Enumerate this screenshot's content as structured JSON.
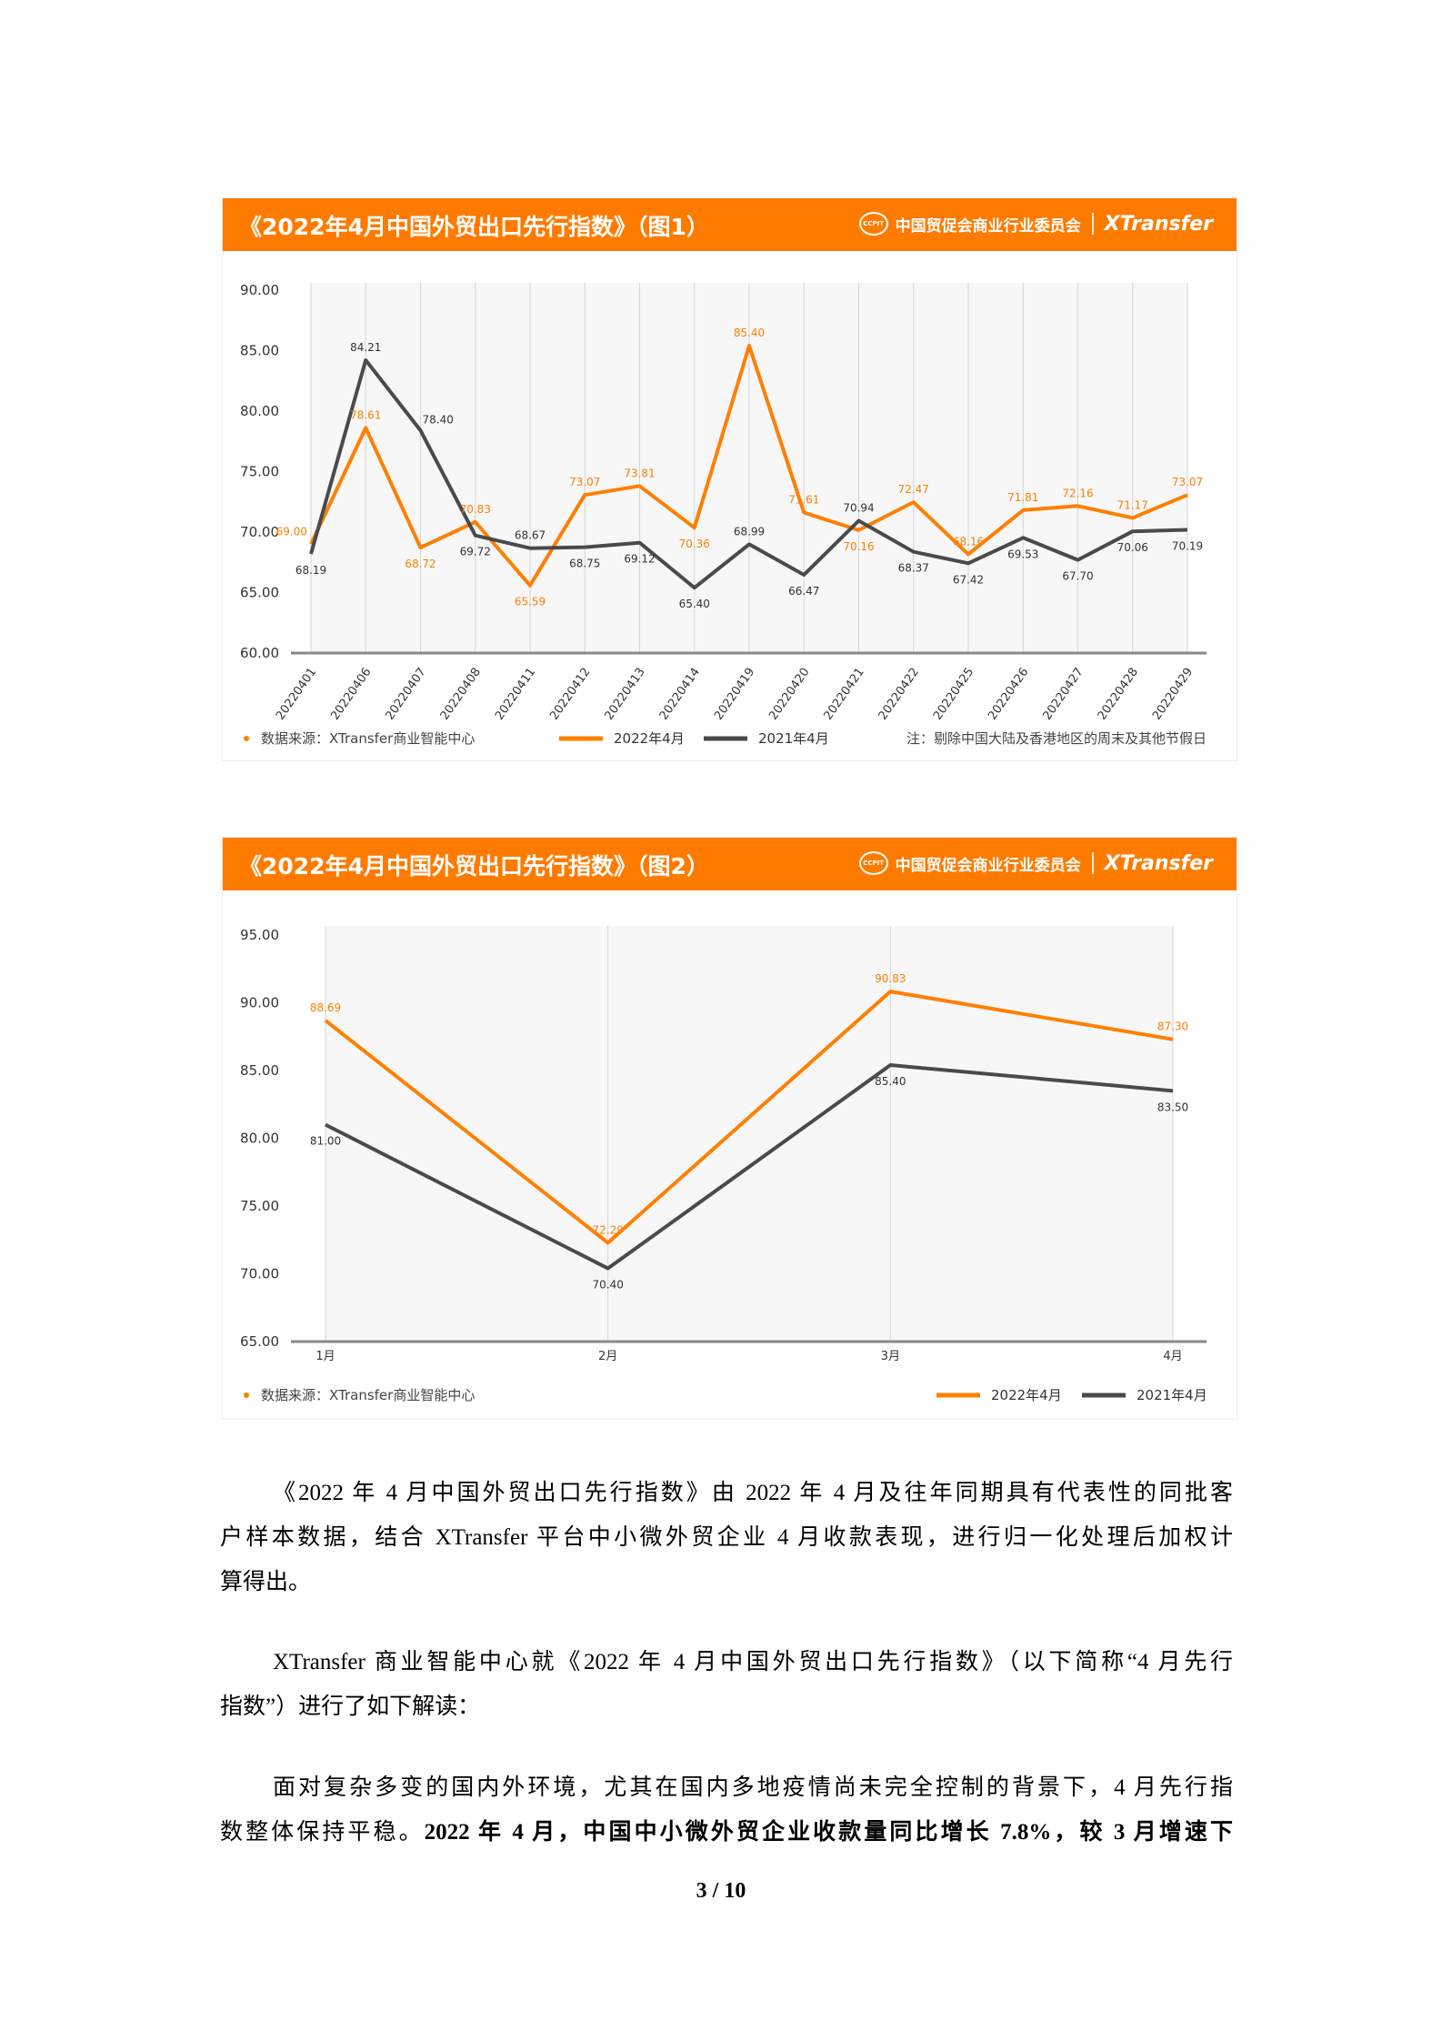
{
  "colors": {
    "header": "#ff7b00",
    "series_2022": "#ff7f00",
    "series_2021": "#4a4a4a",
    "plot_bg": "#f7f7f7"
  },
  "charts_header": {
    "org_name": "中国贸促会商业行业委员会",
    "org_logo_text": "CCPIT",
    "brand": "XTransfer"
  },
  "chart_data": [
    {
      "type": "line",
      "title": "《2022年4月中国外贸出口先行指数》（图1）",
      "categories": [
        "20220401",
        "20220406",
        "20220407",
        "20220408",
        "20220411",
        "20220412",
        "20220413",
        "20220414",
        "20220419",
        "20220420",
        "20220421",
        "20220422",
        "20220425",
        "20220426",
        "20220427",
        "20220428",
        "20220429"
      ],
      "series": [
        {
          "name": "2022年4月",
          "color": "#ff7f00",
          "values": [
            69.0,
            78.61,
            68.72,
            70.83,
            65.59,
            73.07,
            73.81,
            70.36,
            85.4,
            71.61,
            70.16,
            72.47,
            68.16,
            71.81,
            72.16,
            71.17,
            73.07
          ]
        },
        {
          "name": "2021年4月",
          "color": "#4a4a4a",
          "values": [
            68.19,
            84.21,
            78.4,
            69.72,
            68.67,
            68.75,
            69.12,
            65.4,
            68.99,
            66.47,
            70.94,
            68.37,
            67.42,
            69.53,
            67.7,
            70.06,
            70.19
          ]
        }
      ],
      "ylim": [
        60,
        90
      ],
      "yticks": [
        "90.00",
        "85.00",
        "80.00",
        "75.00",
        "70.00",
        "65.00",
        "60.00"
      ],
      "grid": "vertical",
      "legend": "bottom",
      "source": "数据来源：XTransfer商业智能中心",
      "note": "注：剔除中国大陆及香港地区的周末及其他节假日"
    },
    {
      "type": "line",
      "title": "《2022年4月中国外贸出口先行指数》（图2）",
      "categories": [
        "1月",
        "2月",
        "3月",
        "4月"
      ],
      "series": [
        {
          "name": "2022年4月",
          "color": "#ff7f00",
          "values": [
            88.69,
            72.29,
            90.83,
            87.3
          ]
        },
        {
          "name": "2021年4月",
          "color": "#4a4a4a",
          "values": [
            81.0,
            70.4,
            85.4,
            83.5
          ]
        }
      ],
      "ylim": [
        65,
        95
      ],
      "yticks": [
        "95.00",
        "90.00",
        "85.00",
        "80.00",
        "75.00",
        "70.00",
        "65.00"
      ],
      "grid": "vertical",
      "legend": "bottom-right",
      "source": "数据来源：XTransfer商业智能中心"
    }
  ],
  "text": {
    "p1": {
      "l1": "《2022 年 4 月中国外贸出口先行指数》由 2022 年 4 月及往年同期具有代表性的同批客",
      "l2": "户样本数据，结合 XTransfer 平台中小微外贸企业 4 月收款表现，进行归一化处理后加权计",
      "l3": "算得出。"
    },
    "p2": {
      "l1": "XTransfer 商业智能中心就《2022 年 4 月中国外贸出口先行指数》（以下简称“4 月先行",
      "l2": "指数”）进行了如下解读："
    },
    "p3": {
      "l1": "面对复杂多变的国内外环境，尤其在国内多地疫情尚未完全控制的背景下，4 月先行指",
      "l2_normal": "数整体保持平稳。",
      "l2_bold": "2022 年 4 月，中国中小微外贸企业收款量同比增长 7.8%，较 3 月增速下"
    }
  },
  "page": {
    "label": "3 / 10"
  }
}
